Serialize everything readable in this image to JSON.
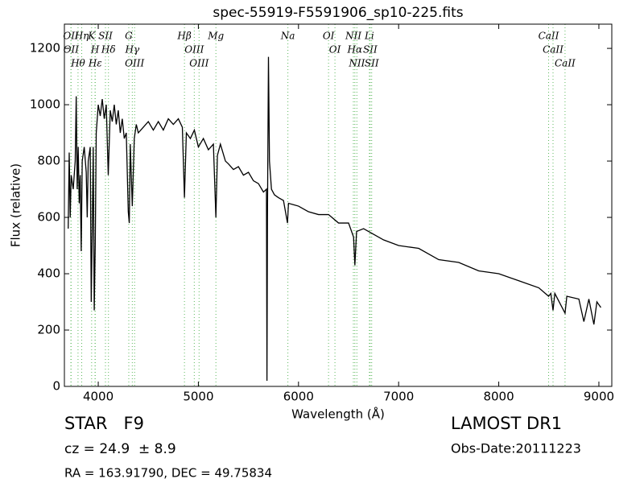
{
  "chart_data": {
    "type": "line",
    "title": "spec-55919-F5591906_sp10-225.fits",
    "x_label": "Wavelength (Å)",
    "y_label": "Flux (relative)",
    "color": "#000000",
    "xlim": [
      3662,
      9129
    ],
    "ylim": [
      0,
      1286
    ],
    "xticks": [
      4000,
      5000,
      6000,
      7000,
      8000,
      9000
    ],
    "yticks": [
      0,
      200,
      400,
      600,
      800,
      1000,
      1200
    ],
    "line_color": "#5cb85c",
    "x": [
      3700,
      3710,
      3720,
      3730,
      3750,
      3770,
      3780,
      3790,
      3800,
      3810,
      3820,
      3830,
      3840,
      3860,
      3880,
      3890,
      3900,
      3920,
      3930,
      3940,
      3950,
      3960,
      3970,
      3980,
      4000,
      4020,
      4040,
      4060,
      4080,
      4100,
      4120,
      4140,
      4160,
      4180,
      4200,
      4220,
      4240,
      4260,
      4280,
      4300,
      4310,
      4320,
      4340,
      4360,
      4380,
      4400,
      4450,
      4500,
      4550,
      4600,
      4650,
      4700,
      4750,
      4800,
      4840,
      4861,
      4880,
      4920,
      4960,
      5000,
      5050,
      5100,
      5150,
      5175,
      5190,
      5220,
      5270,
      5300,
      5350,
      5400,
      5450,
      5500,
      5550,
      5600,
      5650,
      5680,
      5685,
      5690,
      5700,
      5710,
      5730,
      5760,
      5800,
      5850,
      5890,
      5900,
      6000,
      6100,
      6200,
      6300,
      6400,
      6500,
      6550,
      6563,
      6580,
      6650,
      6750,
      6850,
      7000,
      7200,
      7400,
      7600,
      7800,
      8000,
      8200,
      8400,
      8498,
      8520,
      8542,
      8560,
      8662,
      8680,
      8800,
      8850,
      8900,
      8950,
      8980,
      9000,
      9020
    ],
    "values": [
      560,
      830,
      600,
      750,
      700,
      800,
      1030,
      700,
      850,
      650,
      750,
      480,
      800,
      850,
      760,
      600,
      800,
      850,
      300,
      550,
      850,
      270,
      500,
      900,
      1000,
      960,
      1020,
      950,
      1000,
      750,
      980,
      940,
      1000,
      930,
      980,
      900,
      950,
      880,
      900,
      620,
      580,
      860,
      640,
      880,
      930,
      900,
      920,
      940,
      910,
      940,
      910,
      950,
      930,
      950,
      920,
      670,
      900,
      880,
      910,
      850,
      880,
      840,
      860,
      600,
      820,
      860,
      800,
      790,
      770,
      780,
      750,
      760,
      730,
      720,
      690,
      700,
      20,
      600,
      1170,
      800,
      700,
      680,
      670,
      660,
      580,
      650,
      640,
      620,
      610,
      610,
      580,
      580,
      530,
      430,
      550,
      560,
      540,
      520,
      500,
      490,
      450,
      440,
      410,
      400,
      375,
      350,
      320,
      330,
      270,
      330,
      260,
      320,
      310,
      230,
      310,
      220,
      300,
      290,
      280
    ],
    "lines": [
      {
        "label": "OII",
        "x": 3727
      },
      {
        "label": "OII",
        "x": 3729
      },
      {
        "label": "Hθ",
        "x": 3798
      },
      {
        "label": "Hη",
        "x": 3835
      },
      {
        "label": "K",
        "x": 3934
      },
      {
        "label": "H",
        "x": 3968
      },
      {
        "label": "Hε",
        "x": 3970
      },
      {
        "label": "SII",
        "x": 4072
      },
      {
        "label": "Hδ",
        "x": 4102
      },
      {
        "label": "G",
        "x": 4305
      },
      {
        "label": "Hγ",
        "x": 4340
      },
      {
        "label": "OIII",
        "x": 4363
      },
      {
        "label": "Hβ",
        "x": 4861
      },
      {
        "label": "OIII",
        "x": 4959
      },
      {
        "label": "OIII",
        "x": 5007
      },
      {
        "label": "Mg",
        "x": 5175
      },
      {
        "label": "Na",
        "x": 5894
      },
      {
        "label": "OI",
        "x": 6300
      },
      {
        "label": "OI",
        "x": 6364
      },
      {
        "label": "NII",
        "x": 6548
      },
      {
        "label": "Hα",
        "x": 6563
      },
      {
        "label": "NII",
        "x": 6583
      },
      {
        "label": "Li",
        "x": 6708
      },
      {
        "label": "SII",
        "x": 6716
      },
      {
        "label": "SII",
        "x": 6731
      },
      {
        "label": "CaII",
        "x": 8498
      },
      {
        "label": "CaII",
        "x": 8542
      },
      {
        "label": "CaII",
        "x": 8662
      }
    ]
  },
  "info": {
    "object": "STAR   F9",
    "redshift": "cz = 24.9  ± 8.9",
    "coordinates": "RA = 163.91790, DEC = 49.75834",
    "survey": "LAMOST DR1",
    "obs_date": "Obs-Date:20111223"
  }
}
